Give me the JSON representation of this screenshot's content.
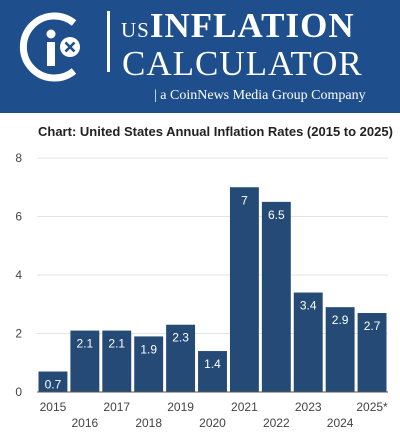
{
  "header": {
    "title_prefix": "US",
    "title_main": "INFLATION",
    "title_line2": "CALCULATOR",
    "tagline": "| a CoinNews Media Group Company",
    "logo_letter": "i",
    "brand_color": "#1f4e8c"
  },
  "chart_data": {
    "type": "bar",
    "title": "Chart: United States Annual Inflation Rates (2015 to 2025)",
    "categories": [
      "2015",
      "2016",
      "2017",
      "2018",
      "2019",
      "2020",
      "2021",
      "2022",
      "2023",
      "2024",
      "2025*"
    ],
    "values": [
      0.7,
      2.1,
      2.1,
      1.9,
      2.3,
      1.4,
      7,
      6.5,
      3.4,
      2.9,
      2.7
    ],
    "value_labels": [
      "0.7",
      "2.1",
      "2.1",
      "1.9",
      "2.3",
      "1.4",
      "7",
      "6.5",
      "3.4",
      "2.9",
      "2.7"
    ],
    "ylim": [
      0,
      8
    ],
    "yticks": [
      "0",
      "2",
      "4",
      "6",
      "8"
    ],
    "xlabel": "",
    "ylabel": "",
    "grid": true,
    "bar_color": "#244a75",
    "label_color": "#ffffff"
  }
}
